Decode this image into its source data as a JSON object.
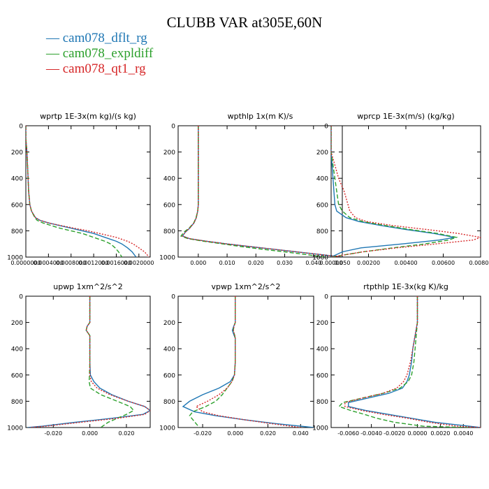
{
  "figure": {
    "title": "CLUBB VAR at305E,60N",
    "legend": [
      {
        "label": "cam078_dflt_rg",
        "color": "#1f77b4"
      },
      {
        "label": "cam078_expldiff",
        "color": "#2ca02c"
      },
      {
        "label": "cam078_qt1_rg",
        "color": "#d62728"
      }
    ]
  },
  "chart_data": [
    {
      "type": "line",
      "title": "wprtp  1E-3x(m kg)/(s kg)",
      "xlim": [
        0.0,
        0.0022
      ],
      "ylim": [
        1000,
        0
      ],
      "xticks": [
        "0.0000000",
        "0.0004000",
        "0.0008000",
        "0.0012000",
        "0.0016000",
        "0.0020000"
      ],
      "xtick_values": [
        0.0,
        0.0004,
        0.0008,
        0.0012,
        0.0016,
        0.002
      ],
      "yticks": [
        0,
        200,
        400,
        600,
        800,
        1000
      ],
      "y": [
        0,
        100,
        200,
        300,
        400,
        500,
        600,
        650,
        700,
        720,
        740,
        760,
        780,
        800,
        820,
        850,
        880,
        900,
        930,
        960,
        1000
      ],
      "series": [
        {
          "values": [
            0,
            0,
            2e-05,
            3e-05,
            4e-05,
            5e-05,
            7e-05,
            0.0001,
            0.00017,
            0.00025,
            0.0004,
            0.0006,
            0.0008,
            0.001,
            0.0012,
            0.0014,
            0.0016,
            0.0017,
            0.0018,
            0.00188,
            0.00195
          ]
        },
        {
          "values": [
            0,
            0,
            2e-05,
            3e-05,
            4e-05,
            5e-05,
            7e-05,
            0.0001,
            0.00016,
            0.0002,
            0.0003,
            0.00045,
            0.0006,
            0.0008,
            0.001,
            0.0012,
            0.0014,
            0.0015,
            0.00158,
            0.00164,
            0.0017
          ]
        },
        {
          "values": [
            0,
            0,
            2e-05,
            3e-05,
            4e-05,
            5e-05,
            7e-05,
            0.0001,
            0.00017,
            0.00025,
            0.0004,
            0.00062,
            0.00085,
            0.0011,
            0.0013,
            0.0016,
            0.0018,
            0.0019,
            0.002,
            0.0021,
            0.00218
          ]
        }
      ]
    },
    {
      "type": "line",
      "title": "wpthlp  1x(m K)/s",
      "xlim": [
        -0.007,
        0.05
      ],
      "ylim": [
        1000,
        0
      ],
      "xticks": [
        "0.000",
        "0.010",
        "0.020",
        "0.030",
        "0.040",
        "0.050"
      ],
      "xtick_values": [
        0.0,
        0.01,
        0.02,
        0.03,
        0.04,
        0.05
      ],
      "yticks": [
        0,
        200,
        400,
        600,
        800,
        1000
      ],
      "y": [
        0,
        100,
        200,
        300,
        400,
        500,
        600,
        650,
        700,
        740,
        780,
        810,
        840,
        860,
        880,
        900,
        920,
        940,
        960,
        980,
        1000
      ],
      "series": [
        {
          "values": [
            0.0,
            0.0,
            0.0,
            0.0,
            0.0,
            0.0,
            0.0,
            -0.0002,
            -0.0007,
            -0.0015,
            -0.003,
            -0.0045,
            -0.0055,
            -0.003,
            0.003,
            0.01,
            0.018,
            0.026,
            0.034,
            0.042,
            0.05
          ]
        },
        {
          "values": [
            0.0,
            0.0,
            0.0,
            0.0,
            0.0,
            0.0,
            0.0,
            -0.0002,
            -0.0008,
            -0.0016,
            -0.0032,
            -0.005,
            -0.006,
            -0.0035,
            0.002,
            0.0085,
            0.015,
            0.022,
            0.03,
            0.037,
            0.044
          ]
        },
        {
          "values": [
            0.0,
            0.0,
            0.0,
            0.0,
            0.0,
            0.0,
            0.0,
            -0.0002,
            -0.0007,
            -0.0015,
            -0.003,
            -0.0045,
            -0.0055,
            -0.003,
            0.003,
            0.01,
            0.018,
            0.026,
            0.034,
            0.042,
            0.05
          ]
        }
      ]
    },
    {
      "type": "line",
      "title": "wprcp  1E-3x(m/s) (kg/kg)",
      "xlim": [
        0.0,
        0.008
      ],
      "ylim": [
        1000,
        0
      ],
      "xticks": [
        "0.00000",
        "0.00200",
        "0.00400",
        "0.00600",
        "0.00800"
      ],
      "xtick_values": [
        0.0,
        0.002,
        0.004,
        0.006,
        0.008
      ],
      "yticks": [
        0,
        200,
        400,
        600,
        800,
        1000
      ],
      "y": [
        0,
        200,
        300,
        400,
        500,
        600,
        650,
        700,
        730,
        760,
        790,
        820,
        850,
        870,
        900,
        930,
        960,
        1000
      ],
      "series": [
        {
          "values": [
            0.0,
            0.0,
            5e-05,
            0.0001,
            0.00015,
            0.0002,
            0.0003,
            0.0008,
            0.0015,
            0.0027,
            0.004,
            0.0055,
            0.0066,
            0.0058,
            0.0038,
            0.0016,
            0.0006,
            0.0
          ]
        },
        {
          "values": [
            0.0,
            0.0,
            0.0001,
            0.0002,
            0.0003,
            0.0004,
            0.0006,
            0.001,
            0.0017,
            0.0029,
            0.0042,
            0.0057,
            0.0067,
            0.0063,
            0.005,
            0.0033,
            0.0017,
            0.0
          ]
        },
        {
          "values": [
            0.0,
            0.0,
            0.0002,
            0.0004,
            0.0007,
            0.0009,
            0.001,
            0.0013,
            0.0019,
            0.0033,
            0.0051,
            0.0068,
            0.008,
            0.0076,
            0.0056,
            0.0035,
            0.0017,
            0.0
          ]
        }
      ]
    },
    {
      "type": "line",
      "title": "upwp  1xm^2/s^2",
      "xlim": [
        -0.035,
        0.033
      ],
      "ylim": [
        1000,
        0
      ],
      "xticks": [
        "-0.020",
        "0.000",
        "0.020"
      ],
      "xtick_values": [
        -0.02,
        0.0,
        0.02
      ],
      "yticks": [
        0,
        200,
        400,
        600,
        800,
        1000
      ],
      "y": [
        0,
        100,
        200,
        230,
        260,
        280,
        300,
        400,
        500,
        600,
        650,
        700,
        750,
        800,
        840,
        870,
        900,
        930,
        960,
        990,
        1000
      ],
      "series": [
        {
          "values": [
            0.0,
            0.0,
            0.0,
            -0.0015,
            -0.002,
            -0.001,
            0.0,
            0.0,
            0.0,
            0.0003,
            0.0022,
            0.0055,
            0.012,
            0.021,
            0.03,
            0.033,
            0.029,
            0.012,
            -0.008,
            -0.026,
            -0.034
          ]
        },
        {
          "values": [
            0.0,
            0.0,
            0.0,
            -0.0015,
            -0.002,
            -0.001,
            0.0,
            0.0,
            0.0,
            -0.0002,
            -0.0004,
            0.0003,
            0.006,
            0.015,
            0.022,
            0.024,
            0.02,
            0.015,
            0.01,
            0.007,
            0.006
          ]
        },
        {
          "values": [
            0.0,
            0.0,
            0.0,
            -0.0015,
            -0.002,
            -0.001,
            0.0,
            0.0,
            0.0,
            0.0,
            0.0008,
            0.004,
            0.011,
            0.021,
            0.03,
            0.033,
            0.03,
            0.015,
            -0.005,
            -0.024,
            -0.033
          ]
        }
      ]
    },
    {
      "type": "line",
      "title": "vpwp  1xm^2/s^2",
      "xlim": [
        -0.035,
        0.048
      ],
      "ylim": [
        1000,
        0
      ],
      "xticks": [
        "-0.020",
        "0.000",
        "0.020",
        "0.040"
      ],
      "xtick_values": [
        -0.02,
        0.0,
        0.02,
        0.04
      ],
      "yticks": [
        0,
        200,
        400,
        600,
        800,
        1000
      ],
      "y": [
        0,
        100,
        200,
        230,
        260,
        290,
        320,
        400,
        500,
        600,
        650,
        700,
        750,
        800,
        840,
        880,
        910,
        940,
        970,
        1000
      ],
      "series": [
        {
          "values": [
            0.0,
            0.0,
            0.0,
            -0.001,
            -0.0018,
            -0.001,
            0.0,
            0.0,
            0.0,
            -0.0005,
            -0.003,
            -0.01,
            -0.02,
            -0.028,
            -0.032,
            -0.025,
            -0.012,
            0.005,
            0.025,
            0.048
          ]
        },
        {
          "values": [
            0.0,
            0.0,
            0.0,
            -0.0008,
            -0.0012,
            -0.0005,
            0.0,
            0.0,
            0.0,
            -0.0005,
            -0.002,
            -0.005,
            -0.008,
            -0.012,
            -0.018,
            -0.026,
            -0.028,
            -0.026,
            -0.024,
            -0.022
          ]
        },
        {
          "values": [
            0.0,
            0.0,
            0.0,
            -0.0008,
            -0.0012,
            -0.0005,
            0.0,
            0.0,
            0.0,
            -0.0005,
            -0.002,
            -0.005,
            -0.01,
            -0.017,
            -0.024,
            -0.02,
            -0.01,
            0.005,
            0.022,
            0.04
          ]
        }
      ]
    },
    {
      "type": "line",
      "title": "rtpthlp  1E-3x(kg K)/kg",
      "xlim": [
        -0.0075,
        0.0055
      ],
      "ylim": [
        1000,
        0
      ],
      "xticks": [
        "-0.0060",
        "-0.0040",
        "-0.0020",
        "0.0000",
        "0.0020",
        "0.0040"
      ],
      "xtick_values": [
        -0.006,
        -0.004,
        -0.002,
        0.0,
        0.002,
        0.004
      ],
      "yticks": [
        0,
        200,
        400,
        600,
        800,
        1000
      ],
      "y": [
        0,
        100,
        200,
        300,
        400,
        500,
        600,
        650,
        700,
        740,
        780,
        810,
        840,
        870,
        900,
        930,
        960,
        990,
        1000
      ],
      "series": [
        {
          "values": [
            0.0,
            0.0,
            0.0,
            -0.0002,
            -0.0004,
            -0.0005,
            -0.0007,
            -0.0009,
            -0.0013,
            -0.0025,
            -0.0045,
            -0.006,
            -0.006,
            -0.0045,
            -0.0025,
            -0.0005,
            0.0015,
            0.0045,
            0.0055
          ]
        },
        {
          "values": [
            0.0,
            0.0,
            0.0,
            -0.0001,
            -0.0002,
            -0.0003,
            -0.0005,
            -0.0008,
            -0.0015,
            -0.003,
            -0.005,
            -0.0065,
            -0.0068,
            -0.0058,
            -0.0046,
            -0.0035,
            -0.002,
            0.0005,
            0.0045
          ]
        },
        {
          "values": [
            0.0,
            0.0,
            0.0,
            -0.0002,
            -0.0004,
            -0.0006,
            -0.0009,
            -0.0012,
            -0.0018,
            -0.003,
            -0.005,
            -0.0063,
            -0.0063,
            -0.0048,
            -0.003,
            -0.0008,
            0.001,
            0.0035,
            0.0055
          ]
        }
      ]
    }
  ]
}
